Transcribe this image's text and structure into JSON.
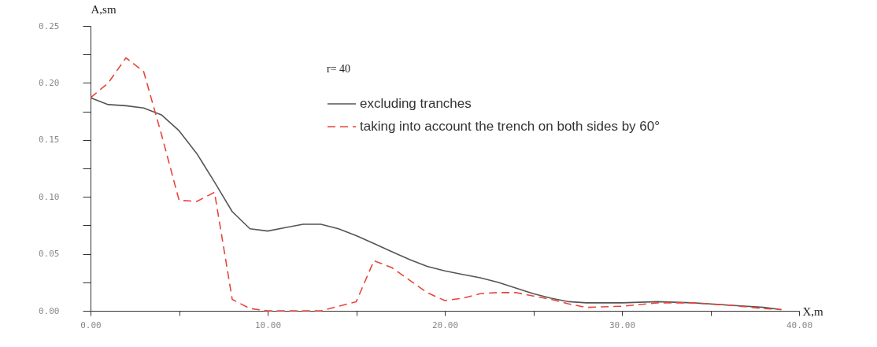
{
  "chart_data": {
    "type": "line",
    "xlabel": "X,m",
    "ylabel": "A,sm",
    "annotations": [
      "r= 40"
    ],
    "x": [
      0,
      1,
      2,
      3,
      4,
      5,
      6,
      7,
      8,
      9,
      10,
      11,
      12,
      13,
      14,
      15,
      16,
      17,
      18,
      19,
      20,
      21,
      22,
      23,
      24,
      25,
      26,
      27,
      28,
      30,
      32,
      34,
      36,
      38,
      39
    ],
    "series": [
      {
        "name": "excluding tranches",
        "color": "#555555",
        "line_style": "solid",
        "values": [
          0.187,
          0.181,
          0.18,
          0.178,
          0.172,
          0.158,
          0.138,
          0.113,
          0.087,
          0.072,
          0.07,
          0.073,
          0.076,
          0.076,
          0.072,
          0.066,
          0.059,
          0.052,
          0.045,
          0.039,
          0.035,
          0.032,
          0.029,
          0.025,
          0.02,
          0.015,
          0.011,
          0.008,
          0.007,
          0.007,
          0.008,
          0.007,
          0.005,
          0.003,
          0.001
        ]
      },
      {
        "name": "taking into account the trench on both sides by 60°",
        "color": "#e8453c",
        "line_style": "dashed",
        "values": [
          0.187,
          0.2,
          0.222,
          0.21,
          0.155,
          0.097,
          0.096,
          0.104,
          0.01,
          0.002,
          0.0,
          0.0,
          0.0,
          0.0,
          0.004,
          0.008,
          0.044,
          0.038,
          0.027,
          0.016,
          0.009,
          0.011,
          0.015,
          0.016,
          0.016,
          0.013,
          0.01,
          0.006,
          0.003,
          0.004,
          0.007,
          0.007,
          0.005,
          0.002,
          0.001
        ]
      }
    ],
    "xlim": [
      0,
      40
    ],
    "ylim": [
      0,
      0.25
    ],
    "xticks": [
      {
        "value": 0,
        "label": "0.00"
      },
      {
        "value": 5,
        "label": null
      },
      {
        "value": 10,
        "label": "10.00"
      },
      {
        "value": 15,
        "label": null
      },
      {
        "value": 20,
        "label": "20.00"
      },
      {
        "value": 25,
        "label": null
      },
      {
        "value": 30,
        "label": "30.00"
      },
      {
        "value": 35,
        "label": null
      },
      {
        "value": 40,
        "label": "40.00"
      }
    ],
    "yticks": [
      {
        "value": 0,
        "label": "0.00"
      },
      {
        "value": 0.025,
        "label": null
      },
      {
        "value": 0.05,
        "label": "0.05"
      },
      {
        "value": 0.075,
        "label": null
      },
      {
        "value": 0.1,
        "label": "0.10"
      },
      {
        "value": 0.125,
        "label": null
      },
      {
        "value": 0.15,
        "label": "0.15"
      },
      {
        "value": 0.175,
        "label": null
      },
      {
        "value": 0.2,
        "label": "0.20"
      },
      {
        "value": 0.225,
        "label": null
      },
      {
        "value": 0.25,
        "label": "0.25"
      }
    ],
    "grid": false,
    "legend": "top right",
    "marker": "none"
  }
}
